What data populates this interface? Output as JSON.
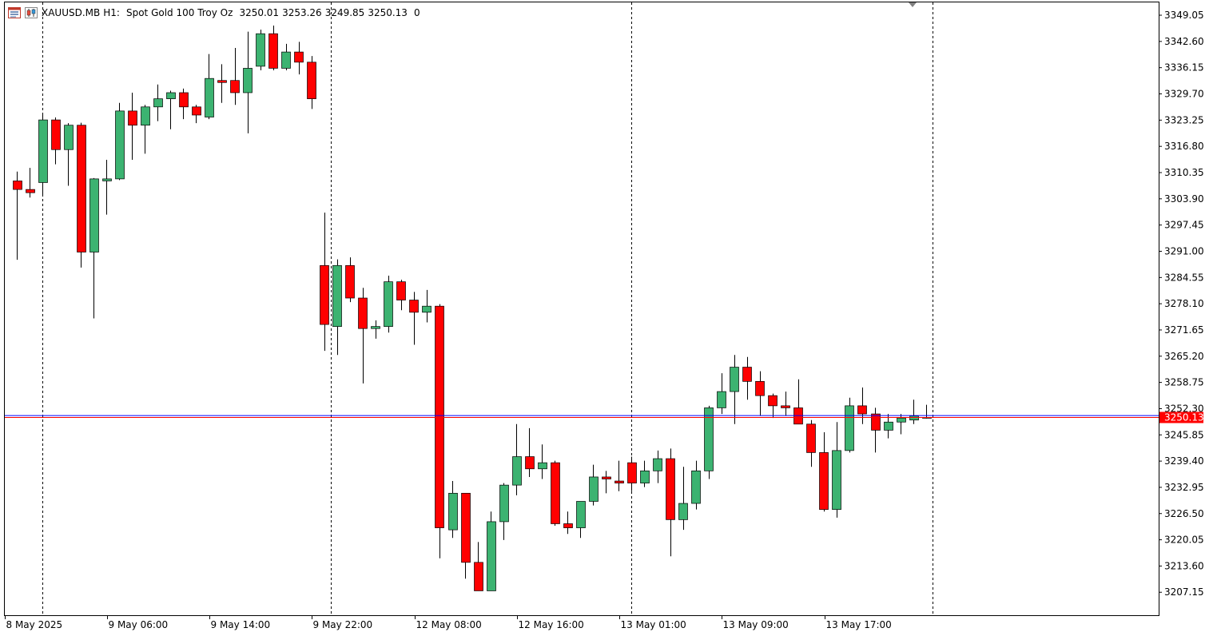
{
  "header": {
    "symbol": "XAUUSD.MB",
    "timeframe": "H1:",
    "description": "Spot Gold 100 Troy Oz",
    "open": "3250.01",
    "high": "3253.26",
    "low": "3249.85",
    "close": "3250.13",
    "volume": "0",
    "icons": [
      "chart-window-icon",
      "candlestick-icon"
    ]
  },
  "colors": {
    "bull": "#3cb371",
    "bear": "#ff0000",
    "wick": "#000000",
    "bid_line": "#ff0000",
    "ask_line": "#0000ff",
    "price_tag_bg": "#ff0000",
    "price_tag_text": "#ffffff",
    "grid": "#000000",
    "background": "#ffffff"
  },
  "chart_data": {
    "type": "candlestick",
    "timeframe": "H1",
    "ylim": [
      3201.5,
      3352.2
    ],
    "y_ticks": [
      "3349.05",
      "3342.60",
      "3336.15",
      "3329.70",
      "3323.25",
      "3316.80",
      "3310.35",
      "3303.90",
      "3297.45",
      "3291.00",
      "3284.55",
      "3278.10",
      "3271.65",
      "3265.20",
      "3258.75",
      "3252.30",
      "3245.85",
      "3239.40",
      "3232.95",
      "3226.50",
      "3220.05",
      "3213.60",
      "3207.15"
    ],
    "x_tick_labels": [
      {
        "label": "8 May 2025",
        "index": 0
      },
      {
        "label": "9 May 06:00",
        "index": 8
      },
      {
        "label": "9 May 14:00",
        "index": 16
      },
      {
        "label": "9 May 22:00",
        "index": 24
      },
      {
        "label": "12 May 08:00",
        "index": 32
      },
      {
        "label": "12 May 16:00",
        "index": 40
      },
      {
        "label": "13 May 01:00",
        "index": 48
      },
      {
        "label": "13 May 09:00",
        "index": 56
      },
      {
        "label": "13 May 17:00",
        "index": 64
      }
    ],
    "period_separators_index": [
      2,
      24.5,
      48,
      71.5
    ],
    "current_price": "3250.13",
    "bid": 3250.13,
    "ask": 3250.6,
    "candles": [
      [
        3308.3,
        3310.6,
        3288.9,
        3306.2
      ],
      [
        3306.2,
        3311.5,
        3304.2,
        3305.4
      ],
      [
        3307.9,
        3324.5,
        3304.5,
        3323.3
      ],
      [
        3323.3,
        3323.9,
        3312.4,
        3316.0
      ],
      [
        3316.0,
        3322.5,
        3307.1,
        3322.0
      ],
      [
        3322.0,
        3322.6,
        3287.0,
        3290.8
      ],
      [
        3290.8,
        3309.0,
        3274.5,
        3308.8
      ],
      [
        3308.3,
        3313.5,
        3300.0,
        3308.8
      ],
      [
        3308.8,
        3327.5,
        3308.5,
        3325.5
      ],
      [
        3325.5,
        3330.0,
        3313.5,
        3322.0
      ],
      [
        3322.0,
        3327.0,
        3315.0,
        3326.5
      ],
      [
        3326.5,
        3332.0,
        3323.0,
        3328.5
      ],
      [
        3328.5,
        3330.5,
        3321.0,
        3330.0
      ],
      [
        3330.0,
        3331.0,
        3323.5,
        3326.5
      ],
      [
        3326.5,
        3327.0,
        3322.5,
        3324.5
      ],
      [
        3324.0,
        3339.5,
        3323.5,
        3333.5
      ],
      [
        3333.0,
        3337.0,
        3327.5,
        3332.5
      ],
      [
        3333.0,
        3341.0,
        3327.0,
        3330.0
      ],
      [
        3330.0,
        3345.0,
        3320.0,
        3336.0
      ],
      [
        3336.5,
        3345.5,
        3335.5,
        3344.5
      ],
      [
        3344.5,
        3346.5,
        3335.5,
        3336.0
      ],
      [
        3336.0,
        3342.0,
        3335.5,
        3340.0
      ],
      [
        3340.0,
        3342.5,
        3334.5,
        3337.5
      ],
      [
        3337.5,
        3339.0,
        3326.0,
        3328.5
      ],
      [
        3287.5,
        3300.5,
        3266.5,
        3273.0
      ],
      [
        3272.5,
        3289.0,
        3265.5,
        3287.5
      ],
      [
        3287.5,
        3289.5,
        3278.5,
        3279.5
      ],
      [
        3279.5,
        3282.0,
        3258.5,
        3272.0
      ],
      [
        3272.0,
        3274.0,
        3269.5,
        3272.5
      ],
      [
        3272.5,
        3285.0,
        3271.0,
        3283.5
      ],
      [
        3283.5,
        3284.0,
        3276.5,
        3279.0
      ],
      [
        3279.0,
        3281.0,
        3268.0,
        3276.0
      ],
      [
        3276.0,
        3281.5,
        3273.5,
        3277.5
      ],
      [
        3277.5,
        3278.0,
        3215.5,
        3223.0
      ],
      [
        3222.5,
        3234.5,
        3220.5,
        3231.5
      ],
      [
        3231.5,
        3231.5,
        3210.5,
        3214.5
      ],
      [
        3214.5,
        3219.5,
        3207.5,
        3207.5
      ],
      [
        3207.5,
        3227.0,
        3207.5,
        3224.5
      ],
      [
        3224.5,
        3234.0,
        3220.0,
        3233.5
      ],
      [
        3233.5,
        3248.5,
        3231.0,
        3240.5
      ],
      [
        3240.5,
        3247.5,
        3235.5,
        3237.5
      ],
      [
        3237.5,
        3243.5,
        3235.0,
        3239.0
      ],
      [
        3239.0,
        3239.5,
        3223.5,
        3224.0
      ],
      [
        3224.0,
        3227.0,
        3221.5,
        3223.0
      ],
      [
        3223.0,
        3229.5,
        3220.5,
        3229.5
      ],
      [
        3229.5,
        3238.5,
        3228.5,
        3235.5
      ],
      [
        3235.5,
        3237.0,
        3231.5,
        3235.0
      ],
      [
        3234.5,
        3239.5,
        3232.0,
        3234.0
      ],
      [
        3239.0,
        3240.5,
        3232.0,
        3234.0
      ],
      [
        3234.0,
        3239.5,
        3233.0,
        3237.0
      ],
      [
        3237.0,
        3242.0,
        3234.0,
        3240.0
      ],
      [
        3240.0,
        3242.5,
        3216.0,
        3225.0
      ],
      [
        3225.0,
        3238.0,
        3222.5,
        3229.0
      ],
      [
        3229.0,
        3239.5,
        3227.5,
        3237.0
      ],
      [
        3237.0,
        3253.0,
        3235.0,
        3252.5
      ],
      [
        3252.5,
        3261.0,
        3251.0,
        3256.5
      ],
      [
        3256.5,
        3265.5,
        3248.5,
        3262.5
      ],
      [
        3262.5,
        3265.0,
        3254.5,
        3259.0
      ],
      [
        3259.0,
        3261.5,
        3250.5,
        3255.5
      ],
      [
        3255.5,
        3256.0,
        3250.0,
        3253.0
      ],
      [
        3253.0,
        3256.5,
        3250.5,
        3252.5
      ],
      [
        3252.5,
        3259.5,
        3248.5,
        3248.5
      ],
      [
        3248.5,
        3249.5,
        3238.0,
        3241.5
      ],
      [
        3241.5,
        3246.5,
        3227.0,
        3227.5
      ],
      [
        3227.5,
        3249.0,
        3225.5,
        3242.0
      ],
      [
        3242.0,
        3255.0,
        3241.5,
        3253.0
      ],
      [
        3253.0,
        3257.5,
        3248.5,
        3251.0
      ],
      [
        3251.0,
        3252.5,
        3241.5,
        3247.0
      ],
      [
        3247.0,
        3251.0,
        3245.0,
        3249.0
      ],
      [
        3249.0,
        3251.0,
        3246.0,
        3250.0
      ],
      [
        3249.5,
        3254.5,
        3248.5,
        3250.5
      ],
      [
        3250.01,
        3253.26,
        3249.85,
        3250.13
      ]
    ]
  }
}
